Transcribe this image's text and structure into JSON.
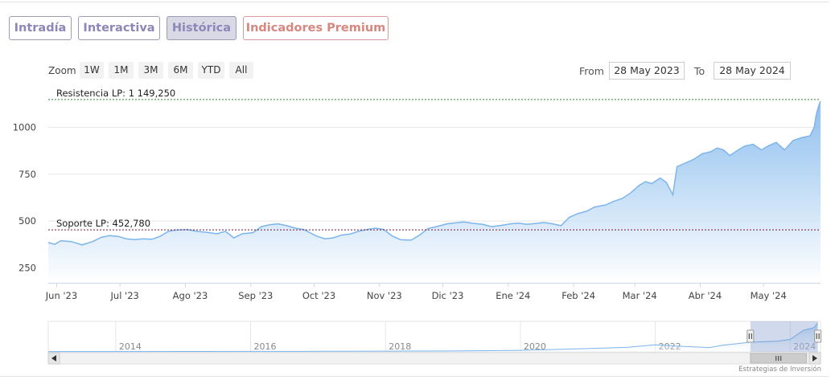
{
  "tabs": [
    {
      "label": "Intradía",
      "active": false
    },
    {
      "label": "Interactiva",
      "active": false
    },
    {
      "label": "Histórica",
      "active": true
    },
    {
      "label": "Indicadores Premium",
      "active": false
    }
  ],
  "range_selector": {
    "zoom_label": "Zoom",
    "buttons": [
      "1W",
      "1M",
      "3M",
      "6M",
      "YTD",
      "All"
    ],
    "from_label": "From",
    "from_value": "28 May 2023",
    "to_label": "To",
    "to_value": "28 May 2024"
  },
  "colors": {
    "line": "#7cb5ec",
    "area_top": "#7cb5ec",
    "resistance": "#2e7d32",
    "support": "#7a1a3a",
    "tab_text": "#8c87b8",
    "premium_text": "#d6877f"
  },
  "navigator": {
    "year_labels": [
      "2014",
      "2016",
      "2018",
      "2020",
      "2022",
      "2024"
    ],
    "x_range": [
      2013,
      2024.45
    ],
    "y_range": [
      0,
      1200
    ],
    "selected_range": [
      2023.41,
      2024.41
    ],
    "series": [
      {
        "x": 2013.0,
        "y": 12
      },
      {
        "x": 2014.0,
        "y": 14
      },
      {
        "x": 2015.0,
        "y": 15
      },
      {
        "x": 2016.0,
        "y": 18
      },
      {
        "x": 2017.0,
        "y": 22
      },
      {
        "x": 2018.0,
        "y": 28
      },
      {
        "x": 2019.0,
        "y": 35
      },
      {
        "x": 2020.0,
        "y": 60
      },
      {
        "x": 2020.5,
        "y": 95
      },
      {
        "x": 2021.0,
        "y": 130
      },
      {
        "x": 2021.6,
        "y": 180
      },
      {
        "x": 2022.0,
        "y": 280
      },
      {
        "x": 2022.3,
        "y": 230
      },
      {
        "x": 2022.8,
        "y": 170
      },
      {
        "x": 2023.0,
        "y": 260
      },
      {
        "x": 2023.4,
        "y": 380
      },
      {
        "x": 2023.8,
        "y": 420
      },
      {
        "x": 2024.0,
        "y": 490
      },
      {
        "x": 2024.2,
        "y": 850
      },
      {
        "x": 2024.35,
        "y": 950
      },
      {
        "x": 2024.41,
        "y": 1140
      }
    ]
  },
  "credits": "Estrategias de Inversión",
  "chart_data": {
    "type": "area",
    "title": "",
    "xlabel": "",
    "ylabel": "",
    "x_ticks": [
      "Jun '23",
      "Jul '23",
      "Ago '23",
      "Sep '23",
      "Oct '23",
      "Nov '23",
      "Dic '23",
      "Ene '24",
      "Feb '24",
      "Mar '24",
      "Abr '24",
      "May '24"
    ],
    "y_ticks": [
      250,
      500,
      750,
      1000
    ],
    "ylim": [
      170,
      1200
    ],
    "xlim": [
      "2023-05-28",
      "2024-05-28"
    ],
    "grid": true,
    "reference_lines": [
      {
        "label": "Resistencia LP: 1 149,250",
        "value": 1149.25,
        "color": "#2e7d32"
      },
      {
        "label": "Soporte LP: 452,780",
        "value": 452.78,
        "color": "#7a1a3a"
      }
    ],
    "series": [
      {
        "points": [
          [
            "2023-05-28",
            385
          ],
          [
            "2023-05-31",
            375
          ],
          [
            "2023-06-03",
            395
          ],
          [
            "2023-06-08",
            390
          ],
          [
            "2023-06-13",
            372
          ],
          [
            "2023-06-18",
            390
          ],
          [
            "2023-06-22",
            412
          ],
          [
            "2023-06-26",
            422
          ],
          [
            "2023-06-30",
            418
          ],
          [
            "2023-07-04",
            405
          ],
          [
            "2023-07-08",
            400
          ],
          [
            "2023-07-12",
            405
          ],
          [
            "2023-07-16",
            402
          ],
          [
            "2023-07-20",
            418
          ],
          [
            "2023-07-24",
            445
          ],
          [
            "2023-07-28",
            452
          ],
          [
            "2023-08-02",
            455
          ],
          [
            "2023-08-06",
            445
          ],
          [
            "2023-08-11",
            440
          ],
          [
            "2023-08-16",
            432
          ],
          [
            "2023-08-20",
            445
          ],
          [
            "2023-08-24",
            410
          ],
          [
            "2023-08-28",
            432
          ],
          [
            "2023-09-02",
            438
          ],
          [
            "2023-09-06",
            470
          ],
          [
            "2023-09-10",
            480
          ],
          [
            "2023-09-14",
            485
          ],
          [
            "2023-09-18",
            475
          ],
          [
            "2023-09-22",
            462
          ],
          [
            "2023-09-26",
            455
          ],
          [
            "2023-10-02",
            420
          ],
          [
            "2023-10-06",
            405
          ],
          [
            "2023-10-10",
            410
          ],
          [
            "2023-10-14",
            425
          ],
          [
            "2023-10-18",
            430
          ],
          [
            "2023-10-22",
            445
          ],
          [
            "2023-10-26",
            455
          ],
          [
            "2023-10-30",
            462
          ],
          [
            "2023-11-03",
            455
          ],
          [
            "2023-11-07",
            420
          ],
          [
            "2023-11-11",
            400
          ],
          [
            "2023-11-16",
            398
          ],
          [
            "2023-11-20",
            425
          ],
          [
            "2023-11-24",
            460
          ],
          [
            "2023-11-28",
            470
          ],
          [
            "2023-12-03",
            485
          ],
          [
            "2023-12-07",
            490
          ],
          [
            "2023-12-11",
            495
          ],
          [
            "2023-12-15",
            488
          ],
          [
            "2023-12-20",
            482
          ],
          [
            "2023-12-24",
            470
          ],
          [
            "2023-12-28",
            475
          ],
          [
            "2024-01-02",
            485
          ],
          [
            "2024-01-06",
            488
          ],
          [
            "2024-01-10",
            482
          ],
          [
            "2024-01-14",
            487
          ],
          [
            "2024-01-18",
            492
          ],
          [
            "2024-01-22",
            485
          ],
          [
            "2024-01-26",
            475
          ],
          [
            "2024-01-30",
            520
          ],
          [
            "2024-02-03",
            540
          ],
          [
            "2024-02-07",
            552
          ],
          [
            "2024-02-11",
            575
          ],
          [
            "2024-02-16",
            585
          ],
          [
            "2024-02-20",
            605
          ],
          [
            "2024-02-24",
            620
          ],
          [
            "2024-02-28",
            650
          ],
          [
            "2024-03-03",
            690
          ],
          [
            "2024-03-06",
            710
          ],
          [
            "2024-03-09",
            700
          ],
          [
            "2024-03-13",
            730
          ],
          [
            "2024-03-16",
            705
          ],
          [
            "2024-03-19",
            640
          ],
          [
            "2024-03-21",
            790
          ],
          [
            "2024-03-25",
            810
          ],
          [
            "2024-03-29",
            830
          ],
          [
            "2024-04-02",
            860
          ],
          [
            "2024-04-06",
            870
          ],
          [
            "2024-04-09",
            890
          ],
          [
            "2024-04-12",
            880
          ],
          [
            "2024-04-15",
            850
          ],
          [
            "2024-04-19",
            880
          ],
          [
            "2024-04-22",
            900
          ],
          [
            "2024-04-26",
            910
          ],
          [
            "2024-04-30",
            880
          ],
          [
            "2024-05-03",
            900
          ],
          [
            "2024-05-07",
            920
          ],
          [
            "2024-05-11",
            880
          ],
          [
            "2024-05-15",
            930
          ],
          [
            "2024-05-19",
            945
          ],
          [
            "2024-05-23",
            955
          ],
          [
            "2024-05-25",
            1000
          ],
          [
            "2024-05-26",
            1070
          ],
          [
            "2024-05-27",
            1110
          ],
          [
            "2024-05-28",
            1140
          ]
        ]
      }
    ]
  }
}
